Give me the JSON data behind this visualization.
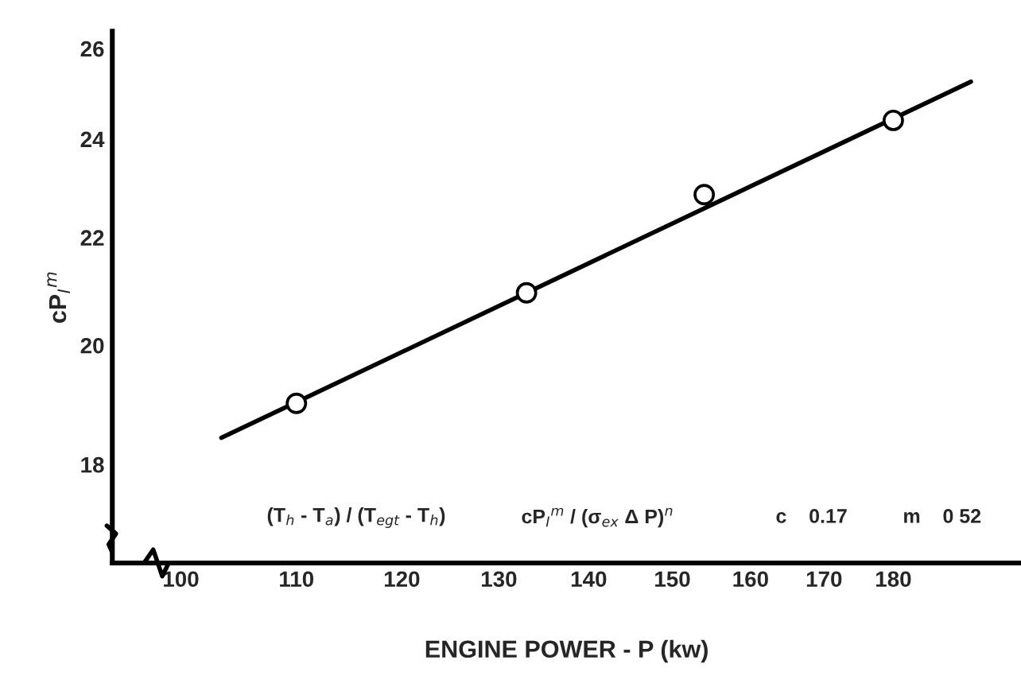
{
  "chart_data": {
    "type": "scatter",
    "xlabel": "ENGINE POWER - P (kw)",
    "ylabel": "cP$_{I}$$^{m}$",
    "log": "xy",
    "grid": false,
    "marker": "circle",
    "xlim": [
      94.5,
      200
    ],
    "ylim": [
      16.5,
      26.4
    ],
    "xticks": [
      100,
      110,
      120,
      130,
      140,
      150,
      160,
      170,
      180
    ],
    "yticks": [
      18,
      20,
      22,
      24,
      26
    ],
    "series": [
      {
        "color": "#000000",
        "x": [
          110,
          133,
          154,
          180
        ],
        "values": [
          19.0,
          20.95,
          22.85,
          24.4
        ]
      },
      {
        "type": "line",
        "color": "#000000",
        "marker": "none",
        "line_style": "solid",
        "x": [
          103.4,
          191.9
        ],
        "values": [
          18.43,
          25.25
        ]
      }
    ],
    "annotations": [
      "(T$_{h}$ - T$_{a}$) / (T$_{egt}$ - T$_{h}$)",
      "cP$_{I}$$^{m}$ / (σ$_{ex}$ Δ P)$^{n}$",
      "c    0.17",
      "m    0 52"
    ]
  }
}
